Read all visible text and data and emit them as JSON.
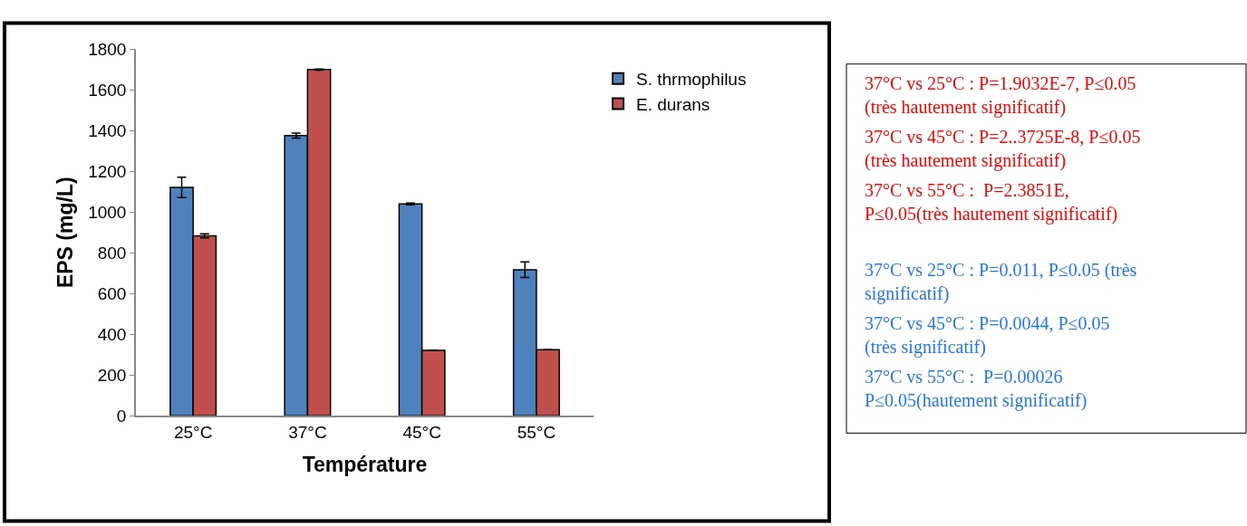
{
  "chart_data": {
    "type": "bar",
    "xlabel": "Température",
    "ylabel": "EPS (mg/L)",
    "categories": [
      "25°C",
      "37°C",
      "45°C",
      "55°C"
    ],
    "series": [
      {
        "name": "S. thrmophilus",
        "color": "#4f81bd",
        "values": [
          1121,
          1376,
          1040,
          717
        ],
        "errors": [
          50,
          12,
          4,
          38
        ]
      },
      {
        "name": "E. durans",
        "color": "#c0504d",
        "values": [
          883,
          1700,
          321,
          324
        ],
        "errors": [
          10,
          3,
          0,
          0
        ]
      }
    ],
    "ylim": [
      0,
      1800
    ],
    "yticks": [
      0,
      200,
      400,
      600,
      800,
      1000,
      1200,
      1400,
      1600,
      1800
    ],
    "legend": "top right",
    "annotations": [
      "37°C vs 25°C : P=1.9032E-7, P≤0.05 (très hautement significatif)",
      "37°C vs 45°C : P=2..3725E-8, P≤0.05 (très hautement significatif)",
      "37°C vs 55°C :  P=2.3851E, P≤0.05(très hautement significatif)",
      "37°C vs 25°C : P=0.011, P≤0.05 (très significatif)",
      "37°C vs 45°C : P=0.0044, P≤0.05 (très significatif)",
      "37°C vs 55°C :  P=0.00026 P≤0.05(hautement significatif)"
    ]
  }
}
